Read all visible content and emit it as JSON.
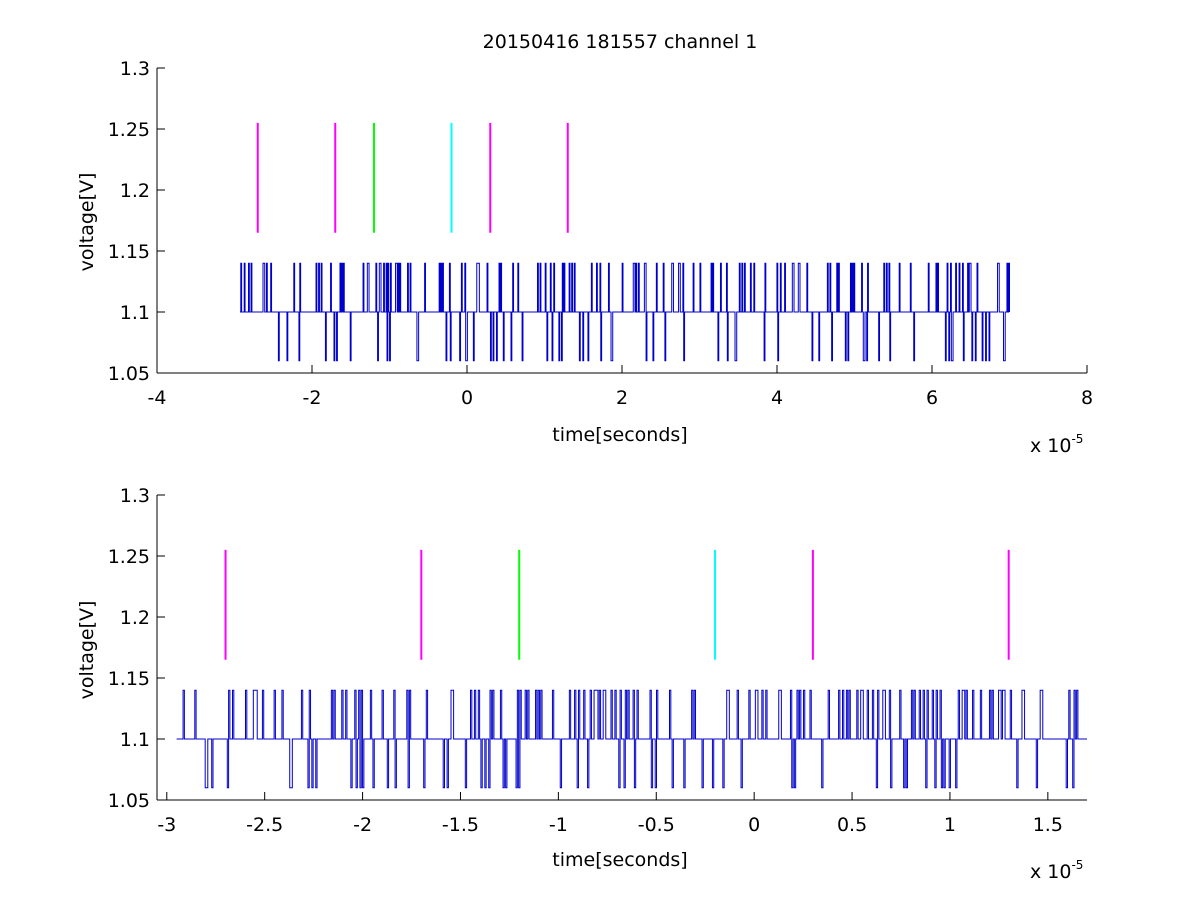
{
  "chart_data": [
    {
      "type": "line",
      "title": "20150416 181557 channel 1",
      "xlabel": "time[seconds]",
      "ylabel": "voltage[V]",
      "x_multiplier_label": "x 10",
      "x_multiplier_exponent": "-5",
      "xlim": [
        -4,
        8
      ],
      "ylim": [
        1.05,
        1.3
      ],
      "xticks": [
        -4,
        -2,
        0,
        2,
        4,
        6,
        8
      ],
      "xtick_labels": [
        "-4",
        "-2",
        "0",
        "2",
        "4",
        "6",
        "8"
      ],
      "yticks": [
        1.05,
        1.1,
        1.15,
        1.2,
        1.25,
        1.3
      ],
      "ytick_labels": [
        "1.05",
        "1.1",
        "1.15",
        "1.2",
        "1.25",
        "1.3"
      ],
      "grid": false,
      "series": [
        {
          "color": "#0000cc",
          "x_range": [
            -2.93,
            7.0
          ],
          "baseline": 1.1,
          "levels": [
            1.06,
            1.1,
            1.14
          ]
        }
      ],
      "markers": [
        {
          "x": -2.7,
          "y_range": [
            1.165,
            1.255
          ],
          "color": "#ff00ff"
        },
        {
          "x": -1.7,
          "y_range": [
            1.165,
            1.255
          ],
          "color": "#ff00ff"
        },
        {
          "x": -1.2,
          "y_range": [
            1.165,
            1.255
          ],
          "color": "#00ff00"
        },
        {
          "x": -0.2,
          "y_range": [
            1.165,
            1.255
          ],
          "color": "#00ffff"
        },
        {
          "x": 0.3,
          "y_range": [
            1.165,
            1.255
          ],
          "color": "#ff00ff"
        },
        {
          "x": 1.3,
          "y_range": [
            1.165,
            1.255
          ],
          "color": "#ff00ff"
        }
      ]
    },
    {
      "type": "line",
      "xlabel": "time[seconds]",
      "ylabel": "voltage[V]",
      "x_multiplier_label": "x 10",
      "x_multiplier_exponent": "-5",
      "xlim": [
        -3.05,
        1.7
      ],
      "ylim": [
        1.05,
        1.3
      ],
      "xticks": [
        -3,
        -2.5,
        -2,
        -1.5,
        -1,
        -0.5,
        0,
        0.5,
        1,
        1.5
      ],
      "xtick_labels": [
        "-3",
        "-2.5",
        "-2",
        "-1.5",
        "-1",
        "-0.5",
        "0",
        "0.5",
        "1",
        "1.5"
      ],
      "yticks": [
        1.05,
        1.1,
        1.15,
        1.2,
        1.25,
        1.3
      ],
      "ytick_labels": [
        "1.05",
        "1.1",
        "1.15",
        "1.2",
        "1.25",
        "1.3"
      ],
      "grid": false,
      "series": [
        {
          "color": "#0000cc",
          "x_range": [
            -2.95,
            1.7
          ],
          "baseline": 1.1,
          "levels": [
            1.06,
            1.1,
            1.14
          ]
        }
      ],
      "markers": [
        {
          "x": -2.7,
          "y_range": [
            1.165,
            1.255
          ],
          "color": "#ff00ff"
        },
        {
          "x": -1.7,
          "y_range": [
            1.165,
            1.255
          ],
          "color": "#ff00ff"
        },
        {
          "x": -1.2,
          "y_range": [
            1.165,
            1.255
          ],
          "color": "#00ff00"
        },
        {
          "x": -0.2,
          "y_range": [
            1.165,
            1.255
          ],
          "color": "#00ffff"
        },
        {
          "x": 0.3,
          "y_range": [
            1.165,
            1.255
          ],
          "color": "#ff00ff"
        },
        {
          "x": 1.3,
          "y_range": [
            1.165,
            1.255
          ],
          "color": "#ff00ff"
        }
      ]
    }
  ]
}
